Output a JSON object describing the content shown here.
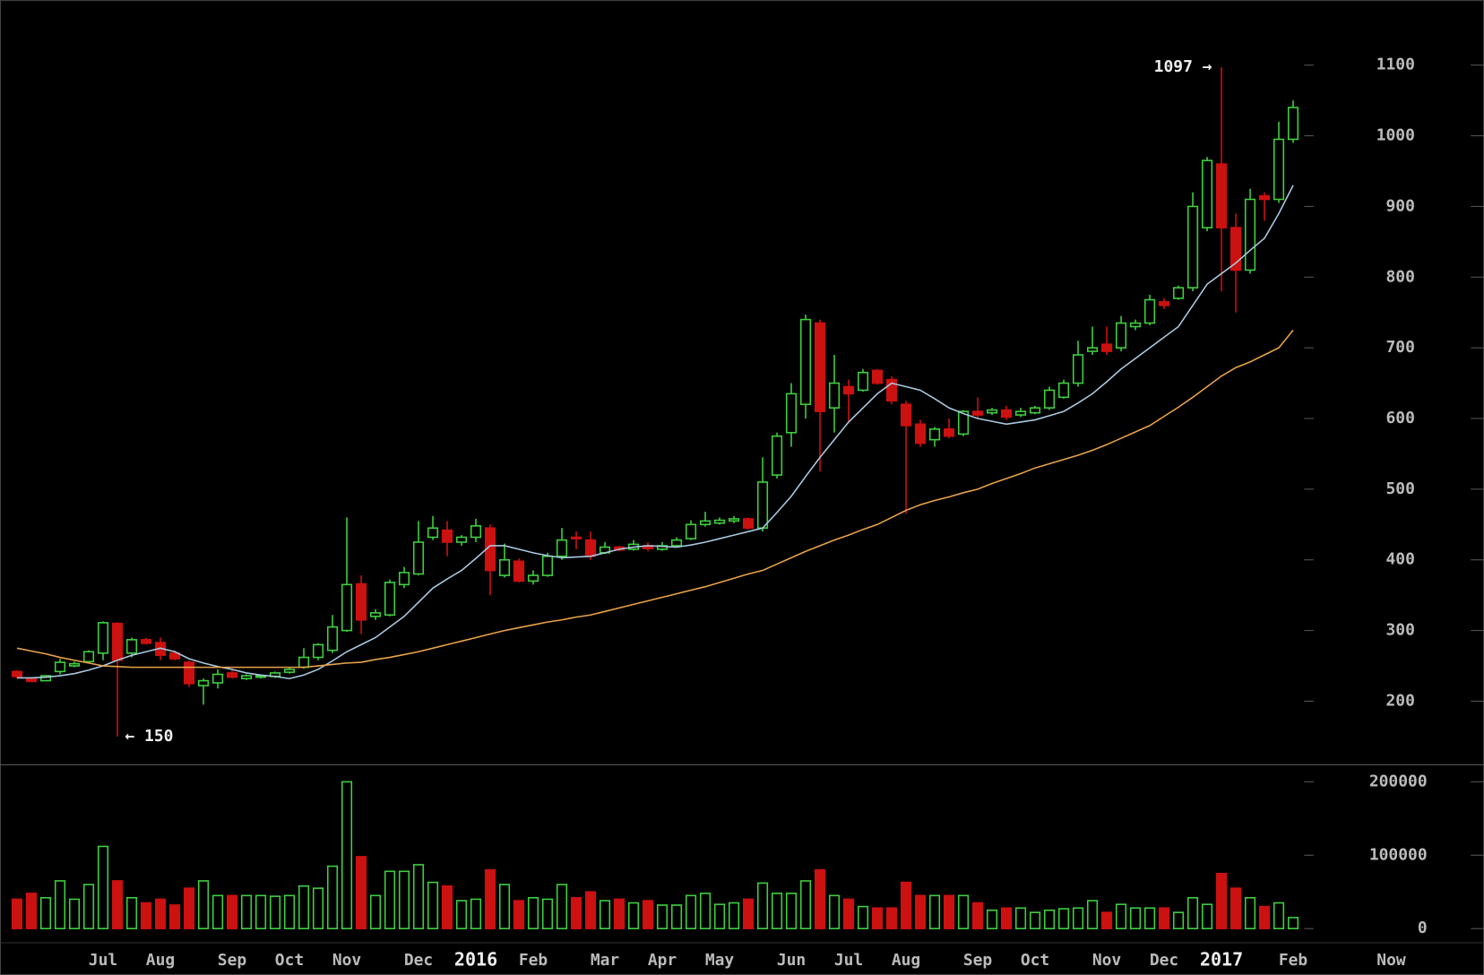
{
  "chart_data": {
    "type": "candlestick",
    "categories": [
      null,
      null,
      null,
      null,
      null,
      null,
      "Jul",
      null,
      null,
      null,
      "Aug",
      null,
      null,
      null,
      null,
      "Sep",
      null,
      null,
      null,
      "Oct",
      null,
      null,
      null,
      "Nov",
      null,
      null,
      null,
      null,
      "Dec",
      null,
      null,
      null,
      "2016",
      null,
      null,
      null,
      "Feb",
      null,
      null,
      null,
      null,
      "Mar",
      null,
      null,
      null,
      "Apr",
      null,
      null,
      null,
      "May",
      null,
      null,
      null,
      null,
      "Jun",
      null,
      null,
      null,
      "Jul",
      null,
      null,
      null,
      "Aug",
      null,
      null,
      null,
      null,
      "Sep",
      null,
      null,
      null,
      "Oct",
      null,
      null,
      null,
      null,
      "Nov",
      null,
      null,
      null,
      "Dec",
      null,
      null,
      null,
      "2017",
      null,
      null,
      null,
      null,
      "Feb"
    ],
    "open": [
      242,
      232,
      229,
      242,
      250,
      256,
      268,
      310,
      268,
      287,
      283,
      268,
      255,
      222,
      226,
      240,
      232,
      234,
      235,
      241,
      248,
      262,
      272,
      300,
      366,
      320,
      322,
      365,
      380,
      432,
      442,
      425,
      432,
      445,
      378,
      398,
      370,
      378,
      405,
      432,
      428,
      410,
      418,
      415,
      420,
      415,
      420,
      430,
      450,
      452,
      455,
      458,
      445,
      520,
      580,
      620,
      735,
      615,
      645,
      640,
      668,
      655,
      620,
      592,
      570,
      585,
      578,
      610,
      608,
      612,
      605,
      608,
      615,
      630,
      650,
      695,
      705,
      700,
      730,
      735,
      765,
      770,
      785,
      870,
      960,
      870,
      810,
      915,
      910,
      995
    ],
    "high": [
      244,
      234,
      237,
      260,
      256,
      272,
      313,
      312,
      290,
      290,
      290,
      272,
      258,
      232,
      245,
      244,
      238,
      238,
      242,
      248,
      275,
      282,
      322,
      460,
      378,
      330,
      372,
      390,
      455,
      462,
      455,
      435,
      458,
      450,
      423,
      402,
      385,
      410,
      445,
      440,
      440,
      425,
      420,
      428,
      425,
      425,
      432,
      456,
      468,
      460,
      462,
      460,
      545,
      580,
      650,
      747,
      740,
      690,
      655,
      670,
      670,
      660,
      625,
      598,
      588,
      600,
      612,
      630,
      615,
      618,
      615,
      618,
      645,
      655,
      710,
      730,
      730,
      745,
      740,
      775,
      770,
      788,
      920,
      970,
      1097,
      890,
      925,
      920,
      1020,
      1050
    ],
    "low": [
      232,
      227,
      228,
      238,
      248,
      254,
      258,
      150,
      262,
      280,
      258,
      258,
      220,
      195,
      218,
      232,
      230,
      232,
      233,
      239,
      246,
      258,
      268,
      298,
      295,
      315,
      320,
      360,
      378,
      428,
      405,
      420,
      425,
      350,
      375,
      368,
      365,
      376,
      400,
      415,
      400,
      408,
      412,
      413,
      412,
      413,
      418,
      428,
      447,
      450,
      452,
      443,
      440,
      515,
      560,
      600,
      525,
      580,
      595,
      638,
      648,
      620,
      465,
      560,
      560,
      572,
      575,
      600,
      605,
      598,
      602,
      606,
      612,
      628,
      645,
      690,
      690,
      695,
      725,
      732,
      755,
      768,
      780,
      865,
      780,
      750,
      805,
      880,
      905,
      990
    ],
    "close": [
      235,
      228,
      236,
      255,
      253,
      270,
      311,
      258,
      287,
      282,
      265,
      260,
      225,
      229,
      238,
      234,
      236,
      236,
      240,
      245,
      262,
      280,
      305,
      365,
      315,
      325,
      368,
      382,
      425,
      445,
      425,
      432,
      448,
      385,
      400,
      370,
      378,
      405,
      428,
      430,
      405,
      418,
      414,
      422,
      416,
      420,
      428,
      450,
      455,
      456,
      458,
      445,
      510,
      575,
      635,
      740,
      610,
      650,
      635,
      665,
      650,
      625,
      590,
      565,
      585,
      575,
      610,
      605,
      612,
      602,
      610,
      615,
      640,
      650,
      690,
      700,
      695,
      735,
      735,
      768,
      760,
      785,
      900,
      965,
      870,
      810,
      910,
      910,
      995,
      1040
    ],
    "volume": [
      40000,
      48000,
      42000,
      65000,
      40000,
      60000,
      112000,
      65000,
      42000,
      35000,
      40000,
      32000,
      55000,
      65000,
      45000,
      45000,
      45000,
      45000,
      44000,
      45000,
      58000,
      55000,
      85000,
      200000,
      98000,
      45000,
      78000,
      78000,
      87000,
      63000,
      58000,
      38000,
      40000,
      80000,
      60000,
      38000,
      42000,
      40000,
      60000,
      42000,
      50000,
      38000,
      40000,
      35000,
      38000,
      32000,
      32000,
      45000,
      48000,
      33000,
      35000,
      40000,
      62000,
      48000,
      48000,
      65000,
      80000,
      45000,
      40000,
      30000,
      28000,
      28000,
      63000,
      45000,
      45000,
      45000,
      45000,
      35000,
      25000,
      28000,
      28000,
      22000,
      25000,
      27000,
      28000,
      38000,
      22000,
      33000,
      28000,
      28000,
      28000,
      22000,
      42000,
      33000,
      75000,
      55000,
      42000,
      30000,
      35000,
      15000
    ],
    "moving_averages": [
      {
        "color": "#a9c8e0",
        "values": [
          233,
          233,
          234,
          236,
          239,
          244,
          250,
          258,
          265,
          270,
          275,
          270,
          260,
          254,
          249,
          245,
          240,
          237,
          235,
          232,
          237,
          245,
          257,
          270,
          280,
          290,
          305,
          320,
          340,
          360,
          373,
          385,
          402,
          420,
          420,
          415,
          410,
          406,
          403,
          404,
          405,
          410,
          415,
          418,
          420,
          419,
          418,
          421,
          425,
          430,
          435,
          440,
          445,
          467,
          490,
          518,
          545,
          570,
          595,
          615,
          635,
          650,
          645,
          640,
          628,
          615,
          607,
          600,
          596,
          592,
          595,
          598,
          604,
          610,
          622,
          635,
          652,
          670,
          685,
          700,
          715,
          730,
          760,
          790,
          805,
          820,
          838,
          855,
          890,
          930
        ]
      },
      {
        "color": "#e8a24a",
        "values": [
          275,
          271,
          267,
          262,
          258,
          254,
          250,
          249,
          248,
          248,
          248,
          248,
          248,
          248,
          248,
          248,
          248,
          248,
          248,
          248,
          248,
          250,
          252,
          254,
          255,
          259,
          262,
          266,
          270,
          275,
          280,
          285,
          290,
          295,
          300,
          304,
          308,
          312,
          315,
          319,
          322,
          327,
          332,
          337,
          342,
          347,
          352,
          357,
          362,
          368,
          374,
          380,
          385,
          394,
          403,
          412,
          420,
          428,
          435,
          443,
          450,
          460,
          470,
          478,
          484,
          489,
          495,
          500,
          508,
          515,
          522,
          530,
          536,
          542,
          548,
          555,
          563,
          572,
          581,
          590,
          603,
          616,
          630,
          645,
          660,
          672,
          680,
          690,
          700,
          725
        ]
      }
    ],
    "up_color": "#3fcf3f",
    "down_color": "#cc1111",
    "ylim": [
      110,
      1192
    ],
    "yticks": [
      200,
      300,
      400,
      500,
      600,
      700,
      800,
      900,
      1000,
      1100
    ],
    "volume_ylim": [
      -18000,
      220600
    ],
    "volume_ticks": [
      0,
      100000,
      200000
    ],
    "annotations": [
      {
        "label": "1097 →",
        "value": 1097
      },
      {
        "label": "← 150",
        "value": 150
      }
    ],
    "corner_label": "Now"
  }
}
